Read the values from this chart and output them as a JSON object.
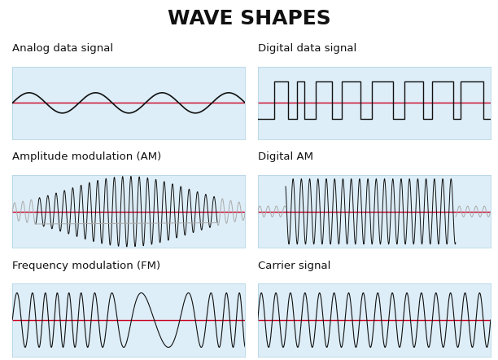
{
  "title": "WAVE SHAPES",
  "title_fontsize": 18,
  "title_fontweight": "bold",
  "labels": [
    "Analog data signal",
    "Digital data signal",
    "Amplitude modulation (AM)",
    "Digital AM",
    "Frequency modulation (FM)",
    "Carrier signal"
  ],
  "label_fontsize": 9.5,
  "grid_color": "#aacfe0",
  "panel_bg": "#ddeef8",
  "wave_color": "#111111",
  "wave_color_faded": "#aaaaaa",
  "red_line_color": "#cc0022",
  "outer_bg": "#ffffff",
  "border_color": "#aacfe0"
}
